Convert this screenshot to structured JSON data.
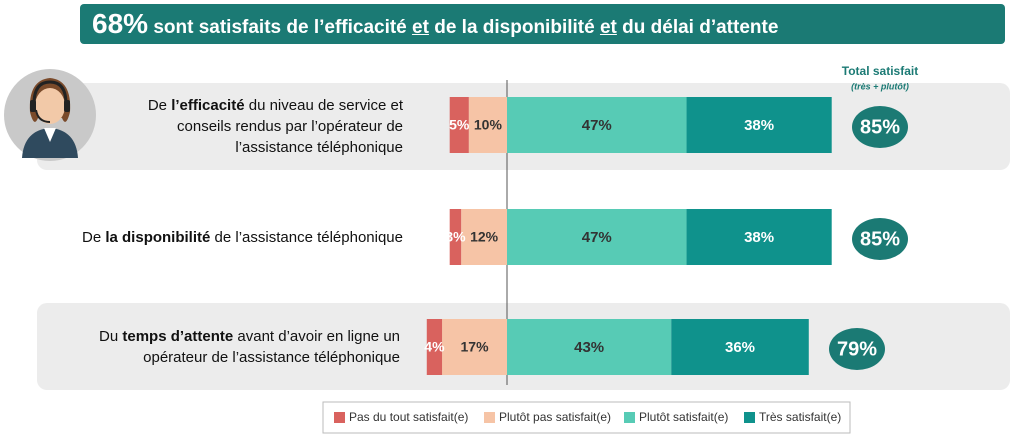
{
  "chart_data": {
    "type": "diverging-bar",
    "title": [
      "68%",
      " sont satisfaits de l’efficacité ",
      "et",
      " de la disponibilité ",
      "et",
      " du délai d’attente"
    ],
    "categories": [
      [
        "De ",
        "l’efficacité",
        " du niveau de service et conseils rendus par l’opérateur de l’assistance téléphonique"
      ],
      [
        "De ",
        "la disponibilité",
        " de l’assistance téléphonique"
      ],
      [
        "Du ",
        "temps d’attente",
        " avant d’avoir en ligne un opérateur de l’assistance téléphonique"
      ]
    ],
    "series": [
      {
        "name": "Pas du tout satisfait(e)",
        "color": "#d9625e",
        "negative": true,
        "values": [
          5,
          3,
          4
        ],
        "value_labels": [
          "5%",
          "3%",
          "4%"
        ]
      },
      {
        "name": "Plutôt pas satisfait(e)",
        "color": "#f6c4a6",
        "negative": true,
        "values": [
          10,
          12,
          17
        ],
        "value_labels": [
          "10%",
          "12%",
          "17%"
        ]
      },
      {
        "name": "Plutôt satisfait(e)",
        "color": "#57cbb5",
        "values": [
          47,
          47,
          43
        ],
        "value_labels": [
          "47%",
          "47%",
          "43%"
        ]
      },
      {
        "name": "Très satisfait(e)",
        "color": "#0f928c",
        "values": [
          38,
          38,
          36
        ],
        "value_labels": [
          "38%",
          "38%",
          "36%"
        ]
      }
    ],
    "total_title": "Total satisfait",
    "total_subtitle": "(très + plutôt)",
    "totals": {
      "color": "#1b7a74",
      "values": [
        85,
        85,
        79
      ],
      "value_labels": [
        "85%",
        "85%",
        "79%"
      ]
    }
  }
}
